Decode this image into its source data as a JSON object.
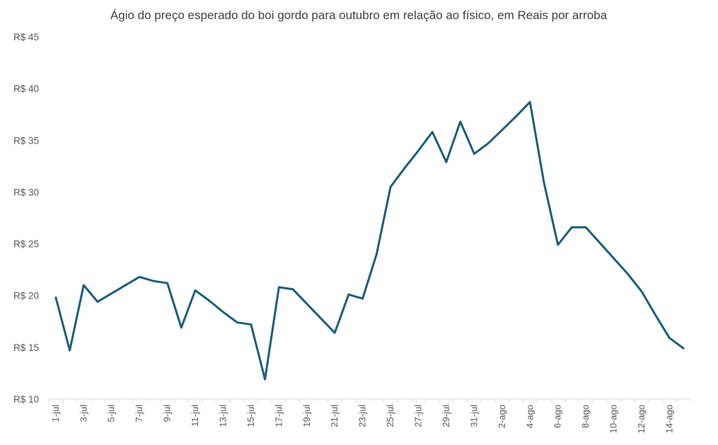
{
  "chart_data": {
    "type": "line",
    "title": "Ágio do preço esperado do boi gordo para outubro em relação ao físico, em Reais por arroba",
    "xlabel": "",
    "ylabel": "",
    "ylim": [
      10,
      45
    ],
    "y_ticks": [
      10,
      15,
      20,
      25,
      30,
      35,
      40,
      45
    ],
    "y_tick_prefix": "R$ ",
    "grid": false,
    "legend": "none",
    "line_color": "#1b5e7b",
    "x": [
      "1-jul",
      "2-jul",
      "3-jul",
      "4-jul",
      "5-jul",
      "6-jul",
      "7-jul",
      "8-jul",
      "9-jul",
      "10-jul",
      "11-jul",
      "12-jul",
      "13-jul",
      "14-jul",
      "15-jul",
      "16-jul",
      "17-jul",
      "18-jul",
      "19-jul",
      "20-jul",
      "21-jul",
      "22-jul",
      "23-jul",
      "24-jul",
      "25-jul",
      "26-jul",
      "27-jul",
      "28-jul",
      "29-jul",
      "30-jul",
      "31-jul",
      "1-ago",
      "2-ago",
      "3-ago",
      "4-ago",
      "5-ago",
      "6-ago",
      "7-ago",
      "8-ago",
      "9-ago",
      "10-ago",
      "11-ago",
      "12-ago",
      "13-ago",
      "14-ago",
      "15-ago"
    ],
    "x_tick_labels": [
      "1-jul",
      "3-jul",
      "5-jul",
      "7-jul",
      "9-jul",
      "11-jul",
      "13-jul",
      "15-jul",
      "17-jul",
      "19-jul",
      "21-jul",
      "23-jul",
      "25-jul",
      "27-jul",
      "29-jul",
      "31-jul",
      "2-ago",
      "4-ago",
      "6-ago",
      "8-ago",
      "10-ago",
      "12-ago",
      "14-ago"
    ],
    "series": [
      {
        "values": [
          19.8,
          14.7,
          21.0,
          19.4,
          20.2,
          21.0,
          21.8,
          21.4,
          21.2,
          16.9,
          20.5,
          19.5,
          18.4,
          17.4,
          17.2,
          11.9,
          20.8,
          20.6,
          19.2,
          17.8,
          16.4,
          20.1,
          19.7,
          24.0,
          30.5,
          32.3,
          34.0,
          35.8,
          32.9,
          36.8,
          33.7,
          34.7,
          36.0,
          37.3,
          38.7,
          30.9,
          24.9,
          26.6,
          26.6,
          25.1,
          23.6,
          22.1,
          20.4,
          18.1,
          15.9,
          14.9
        ]
      }
    ]
  }
}
